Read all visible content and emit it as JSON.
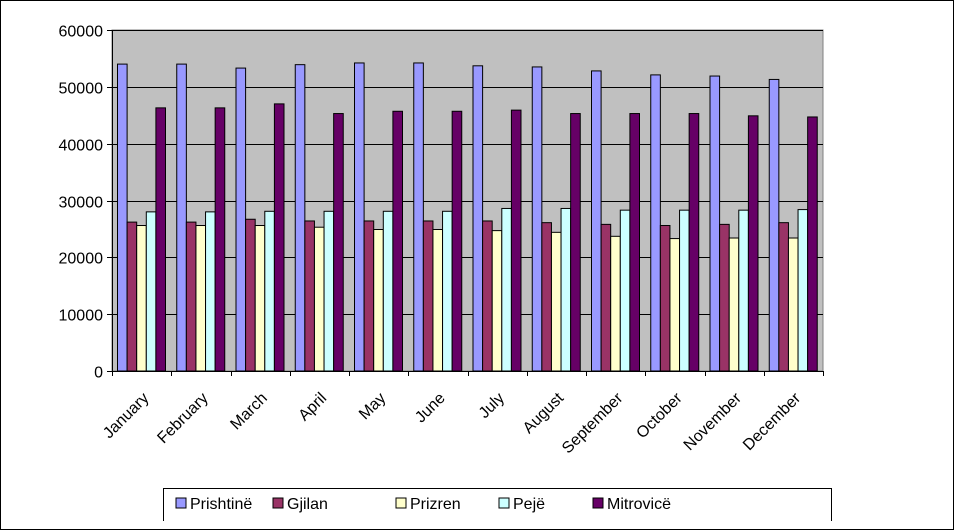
{
  "chart_data": {
    "type": "bar",
    "categories": [
      "January",
      "February",
      "March",
      "April",
      "May",
      "June",
      "July",
      "August",
      "September",
      "October",
      "November",
      "December"
    ],
    "series": [
      {
        "name": "Prishtinë",
        "color": "#9999FF",
        "values": [
          54000,
          54000,
          53300,
          53900,
          54200,
          54200,
          53700,
          53500,
          52800,
          52100,
          51900,
          51300
        ]
      },
      {
        "name": "Gjilan",
        "color": "#993366",
        "values": [
          26200,
          26200,
          26700,
          26400,
          26400,
          26400,
          26400,
          26100,
          25800,
          25600,
          25800,
          26100
        ]
      },
      {
        "name": "Prizren",
        "color": "#FFFFCC",
        "values": [
          25600,
          25600,
          25600,
          25300,
          24900,
          24900,
          24700,
          24400,
          23700,
          23300,
          23400,
          23400
        ]
      },
      {
        "name": "Pejë",
        "color": "#CCFFFF",
        "values": [
          28000,
          28000,
          28100,
          28100,
          28100,
          28100,
          28600,
          28600,
          28300,
          28300,
          28300,
          28400
        ]
      },
      {
        "name": "Mitrovicë",
        "color": "#660066",
        "values": [
          46300,
          46300,
          47000,
          45300,
          45700,
          45700,
          45900,
          45300,
          45300,
          45300,
          44900,
          44700
        ]
      }
    ],
    "yticks": [
      "0",
      "10000",
      "20000",
      "30000",
      "40000",
      "50000",
      "60000"
    ],
    "ylim": [
      0,
      60000
    ],
    "grid": true,
    "legend_position": "bottom",
    "title": "",
    "xlabel": "",
    "ylabel": ""
  }
}
